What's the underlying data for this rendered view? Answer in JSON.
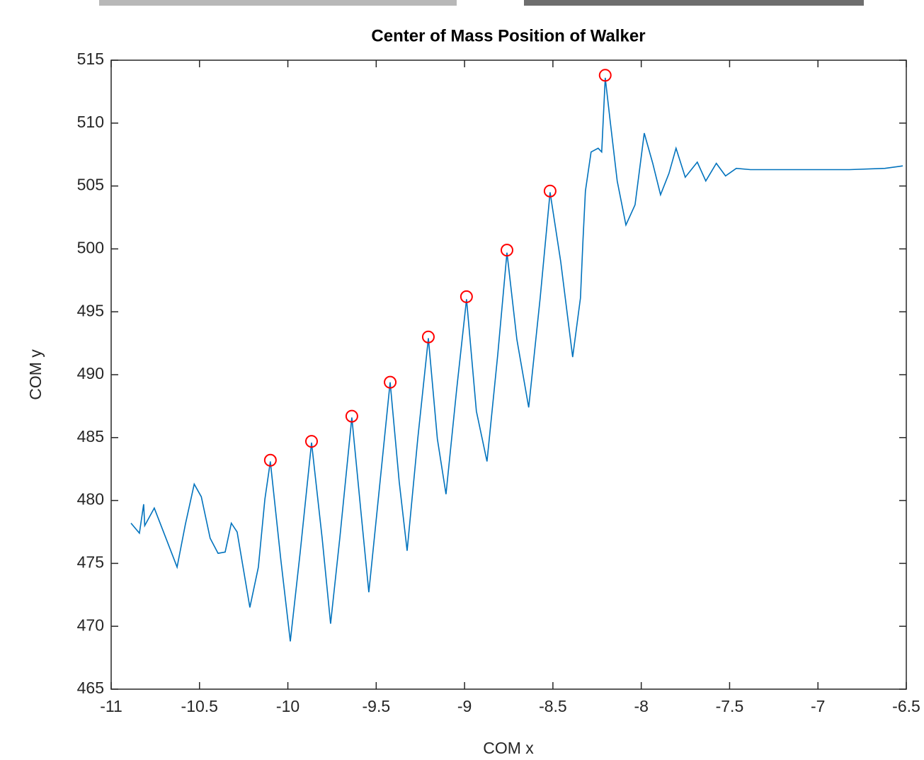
{
  "chart_data": {
    "type": "line",
    "title": "Center of Mass Position of Walker",
    "x_label": "COM x",
    "y_label": "COM y",
    "xlim": [
      -11,
      -6.5
    ],
    "ylim": [
      465,
      515
    ],
    "xticks": [
      -11,
      -10.5,
      -10,
      -9.5,
      -9,
      -8.5,
      -8,
      -7.5,
      -7,
      -6.5
    ],
    "yticks": [
      465,
      470,
      475,
      480,
      485,
      490,
      495,
      500,
      505,
      510,
      515
    ],
    "series": [
      {
        "color": "#0072bd",
        "x": [
          -10.888,
          -10.84,
          -10.816,
          -10.81,
          -10.756,
          -10.69,
          -10.627,
          -10.58,
          -10.53,
          -10.49,
          -10.44,
          -10.395,
          -10.355,
          -10.32,
          -10.287,
          -10.215,
          -10.167,
          -10.13,
          -10.099,
          -10.04,
          -9.986,
          -9.93,
          -9.866,
          -9.806,
          -9.758,
          -9.706,
          -9.638,
          -9.587,
          -9.542,
          -9.486,
          -9.421,
          -9.37,
          -9.325,
          -9.265,
          -9.205,
          -9.154,
          -9.105,
          -9.045,
          -8.989,
          -8.933,
          -8.873,
          -8.812,
          -8.76,
          -8.704,
          -8.637,
          -8.572,
          -8.516,
          -8.456,
          -8.388,
          -8.344,
          -8.33,
          -8.316,
          -8.284,
          -8.244,
          -8.224,
          -8.204,
          -8.176,
          -8.136,
          -8.087,
          -8.035,
          -7.983,
          -7.935,
          -7.891,
          -7.843,
          -7.803,
          -7.751,
          -7.683,
          -7.635,
          -7.575,
          -7.523,
          -7.462,
          -7.382,
          -7.222,
          -6.821,
          -6.621,
          -6.52
        ],
        "values": [
          478.2,
          477.4,
          479.7,
          478.0,
          479.4,
          477.0,
          474.7,
          478.1,
          481.3,
          480.3,
          477.0,
          475.8,
          475.9,
          478.2,
          477.5,
          471.5,
          474.7,
          480.1,
          483.1,
          475.3,
          468.8,
          475.9,
          484.6,
          477.0,
          470.2,
          477.0,
          486.6,
          479.2,
          472.7,
          480.4,
          489.4,
          481.5,
          476.0,
          484.9,
          492.9,
          484.9,
          480.5,
          488.8,
          496.0,
          487.1,
          483.1,
          491.6,
          499.7,
          492.8,
          487.4,
          496.1,
          504.5,
          499.0,
          491.4,
          496.1,
          500.6,
          504.6,
          507.7,
          508.0,
          507.7,
          513.6,
          510.2,
          505.4,
          501.9,
          503.5,
          509.2,
          506.8,
          504.3,
          506.0,
          508.0,
          505.7,
          506.9,
          505.4,
          506.8,
          505.8,
          506.4,
          506.3,
          506.3,
          506.3,
          506.4,
          506.6
        ]
      },
      {
        "color": "#ff0000",
        "marker": "circle",
        "x": [
          -10.099,
          -9.866,
          -9.638,
          -9.421,
          -9.205,
          -8.989,
          -8.76,
          -8.516,
          -8.204
        ],
        "values": [
          483.2,
          484.7,
          486.7,
          489.4,
          493.0,
          496.2,
          499.9,
          504.6,
          513.8
        ]
      }
    ]
  }
}
